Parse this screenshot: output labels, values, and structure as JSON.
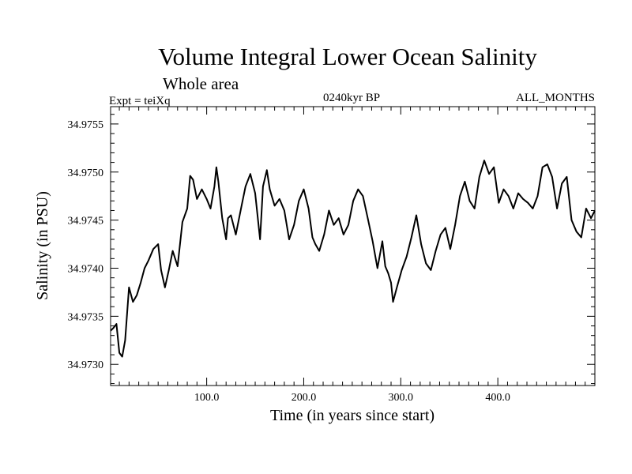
{
  "chart_data": {
    "type": "line",
    "title": "Volume Integral Lower Ocean Salinity",
    "subtitle": "Whole area",
    "annotation_left": "Expt = teiXq",
    "annotation_center": "0240kyr BP",
    "annotation_right": "ALL_MONTHS",
    "xlabel": "Time (in years since start)",
    "ylabel": "Salinity (in PSU)",
    "xlim": [
      1,
      500
    ],
    "ylim": [
      34.97278,
      34.97568
    ],
    "xticks": [
      100,
      200,
      300,
      400
    ],
    "xtick_labels": [
      "100.0",
      "200.0",
      "300.0",
      "400.0"
    ],
    "yticks": [
      34.973,
      34.9735,
      34.974,
      34.9745,
      34.975,
      34.9755
    ],
    "ytick_labels": [
      "34.9730",
      "34.9735",
      "34.9740",
      "34.9745",
      "34.9750",
      "34.9755"
    ],
    "grid": false,
    "line_color": "#000000",
    "series": [
      {
        "name": "salinity",
        "x": [
          1,
          4,
          7,
          10,
          13,
          16,
          20,
          24,
          28,
          32,
          36,
          40,
          45,
          50,
          53,
          57,
          61,
          65,
          70,
          75,
          80,
          83,
          86,
          90,
          95,
          100,
          104,
          108,
          110,
          112,
          116,
          120,
          122,
          125,
          130,
          136,
          140,
          145,
          150,
          155,
          158,
          162,
          165,
          170,
          175,
          180,
          185,
          190,
          195,
          200,
          205,
          209,
          212,
          216,
          221,
          226,
          231,
          236,
          241,
          246,
          251,
          256,
          261,
          266,
          271,
          276,
          281,
          284,
          287,
          290,
          292,
          296,
          301,
          306,
          311,
          316,
          321,
          326,
          331,
          336,
          341,
          346,
          351,
          356,
          361,
          366,
          371,
          376,
          381,
          386,
          391,
          396,
          401,
          406,
          411,
          416,
          421,
          426,
          431,
          436,
          441,
          446,
          451,
          456,
          461,
          466,
          471,
          476,
          481,
          486,
          491,
          496,
          500
        ],
        "values": [
          34.97335,
          34.97338,
          34.97342,
          34.97312,
          34.97308,
          34.97325,
          34.9738,
          34.97365,
          34.97372,
          34.97385,
          34.974,
          34.97408,
          34.9742,
          34.97425,
          34.97398,
          34.9738,
          34.97398,
          34.97418,
          34.97402,
          34.97448,
          34.97462,
          34.97496,
          34.97492,
          34.97472,
          34.97482,
          34.97472,
          34.97462,
          34.97485,
          34.97505,
          34.9749,
          34.97452,
          34.9743,
          34.97452,
          34.97455,
          34.97435,
          34.97465,
          34.97485,
          34.97498,
          34.97478,
          34.9743,
          34.97485,
          34.97502,
          34.97482,
          34.97465,
          34.97472,
          34.9746,
          34.9743,
          34.97445,
          34.9747,
          34.97482,
          34.97462,
          34.97432,
          34.97425,
          34.97418,
          34.97435,
          34.9746,
          34.97445,
          34.97452,
          34.97435,
          34.97445,
          34.9747,
          34.97482,
          34.97475,
          34.97452,
          34.97428,
          34.974,
          34.97428,
          34.97402,
          34.97395,
          34.97385,
          34.97365,
          34.9738,
          34.97398,
          34.97412,
          34.97432,
          34.97455,
          34.97425,
          34.97405,
          34.97398,
          34.97418,
          34.97435,
          34.97442,
          34.9742,
          34.97445,
          34.97475,
          34.9749,
          34.9747,
          34.97462,
          34.97495,
          34.97512,
          34.97498,
          34.97505,
          34.97468,
          34.97482,
          34.97475,
          34.97462,
          34.97478,
          34.97472,
          34.97468,
          34.97462,
          34.97475,
          34.97505,
          34.97508,
          34.97495,
          34.97462,
          34.97488,
          34.97495,
          34.9745,
          34.97438,
          34.97432,
          34.97462,
          34.97452,
          34.9746
        ]
      }
    ]
  }
}
